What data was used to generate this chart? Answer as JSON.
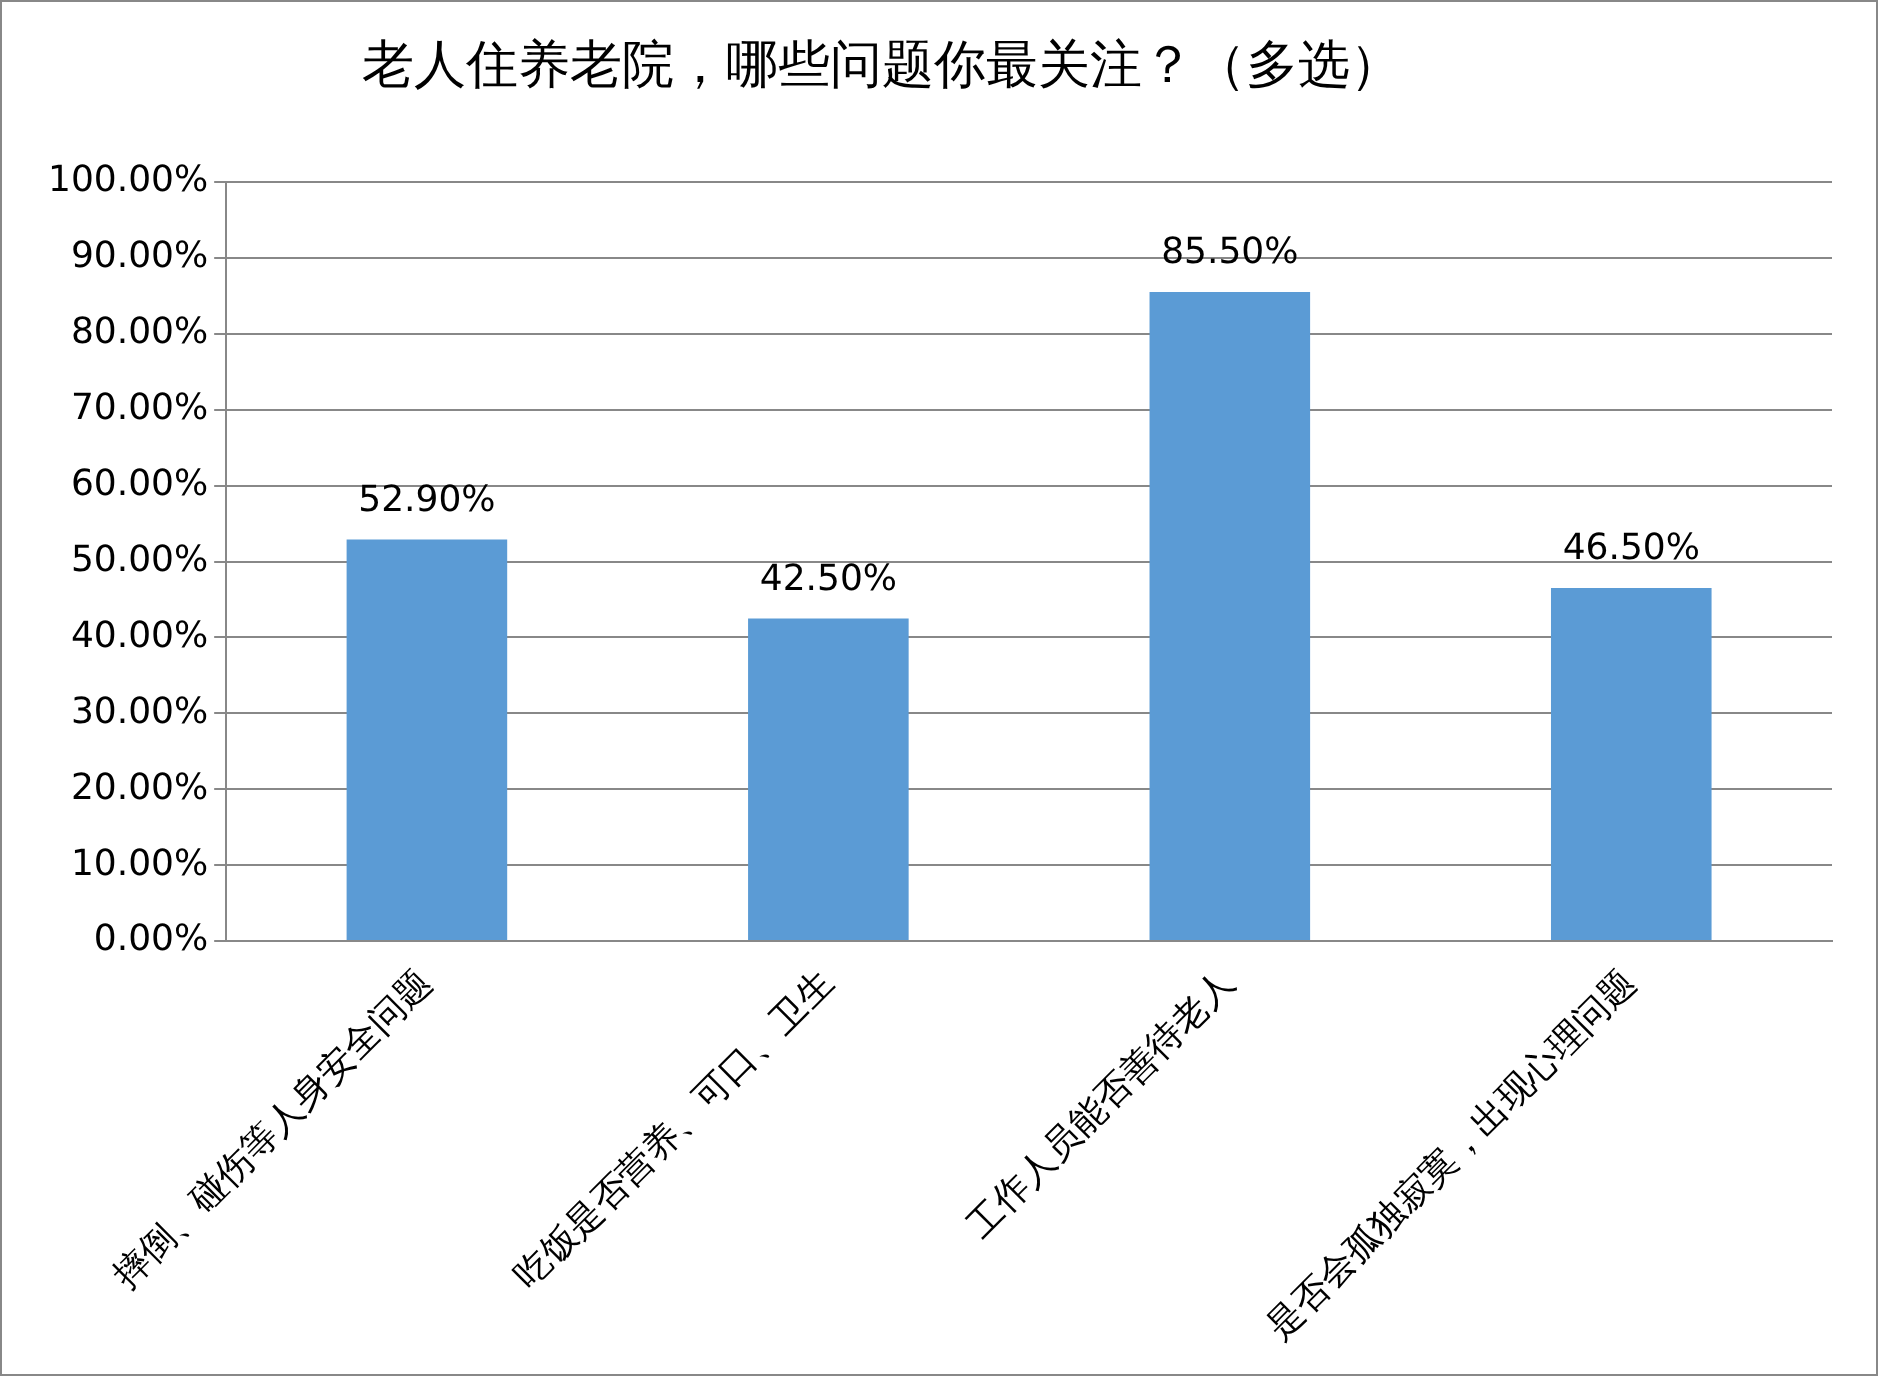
{
  "chart_data": {
    "type": "bar",
    "title": "老人住养老院，哪些问题你最关注？（多选）",
    "categories": [
      "摔倒、碰伤等人身安全问题",
      "吃饭是否营养、可口、卫生",
      "工作人员能否善待老人",
      "是否会孤独寂寞，出现心理问题"
    ],
    "values": [
      52.9,
      42.5,
      85.5,
      46.5
    ],
    "color": "#5b9bd5",
    "value_labels": [
      "52.90%",
      "42.50%",
      "85.50%",
      "46.50%"
    ],
    "ylim": [
      0,
      100
    ],
    "yticks": [
      {
        "value": 0,
        "label": "0.00%"
      },
      {
        "value": 10,
        "label": "10.00%"
      },
      {
        "value": 20,
        "label": "20.00%"
      },
      {
        "value": 30,
        "label": "30.00%"
      },
      {
        "value": 40,
        "label": "40.00%"
      },
      {
        "value": 50,
        "label": "50.00%"
      },
      {
        "value": 60,
        "label": "60.00%"
      },
      {
        "value": 70,
        "label": "70.00%"
      },
      {
        "value": 80,
        "label": "80.00%"
      },
      {
        "value": 90,
        "label": "90.00%"
      },
      {
        "value": 100,
        "label": "100.00%"
      }
    ],
    "grid": "y"
  }
}
